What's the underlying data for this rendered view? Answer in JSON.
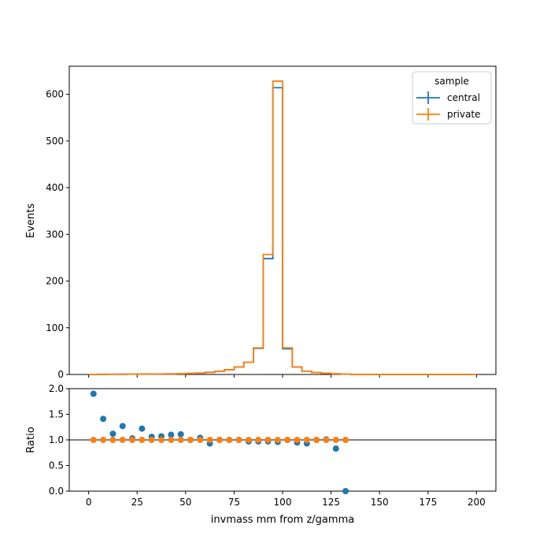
{
  "chart_data": [
    {
      "type": "histogram-step",
      "xlabel": "",
      "ylabel": "Events",
      "xlim": [
        -10,
        210
      ],
      "ylim": [
        0,
        660
      ],
      "xticks": [
        0,
        25,
        50,
        75,
        100,
        125,
        150,
        175,
        200
      ],
      "yticks": [
        0,
        100,
        200,
        300,
        400,
        500,
        600
      ],
      "show_xtick_labels": false,
      "bin_edges": [
        0,
        5,
        10,
        15,
        20,
        25,
        30,
        35,
        40,
        45,
        50,
        55,
        60,
        65,
        70,
        75,
        80,
        85,
        90,
        95,
        100,
        105,
        110,
        115,
        120,
        125,
        130,
        135,
        140,
        145,
        150,
        155,
        160,
        165,
        170,
        175,
        180,
        185,
        190,
        195,
        200
      ],
      "legend": {
        "title": "sample",
        "position": "upper right"
      },
      "series": [
        {
          "name": "central",
          "color": "#1f77b4",
          "values": [
            0.1,
            0.3,
            0.4,
            0.5,
            0.6,
            0.8,
            0.9,
            1.0,
            1.2,
            1.6,
            2.2,
            3.0,
            4.5,
            6.5,
            10,
            16,
            26,
            56,
            248,
            614,
            55,
            16,
            7,
            4,
            2.5,
            1.4,
            0.6,
            0.1,
            0,
            0,
            0,
            0,
            0,
            0,
            0,
            0,
            0,
            0,
            0,
            0
          ]
        },
        {
          "name": "private",
          "color": "#ff7f0e",
          "values": [
            0.1,
            0.3,
            0.4,
            0.5,
            0.6,
            0.8,
            0.9,
            1.0,
            1.2,
            1.6,
            2.2,
            3.0,
            4.5,
            6.5,
            10,
            16,
            26,
            57,
            257,
            628,
            57,
            16,
            7,
            4,
            2.5,
            1.4,
            0.6,
            0.1,
            0,
            0,
            0,
            0,
            0,
            0,
            0,
            0,
            0,
            0,
            0,
            0
          ]
        }
      ]
    },
    {
      "type": "scatter",
      "xlabel": "invmass mm from z/gamma",
      "ylabel": "Ratio",
      "xlim": [
        -10,
        210
      ],
      "ylim": [
        0,
        2
      ],
      "xticks": [
        0,
        25,
        50,
        75,
        100,
        125,
        150,
        175,
        200
      ],
      "yticks": [
        0.0,
        0.5,
        1.0,
        1.5,
        2.0
      ],
      "reference_line": 1.0,
      "series": [
        {
          "name": "central",
          "color": "#1f77b4",
          "x": [
            2.5,
            7.5,
            12.5,
            17.5,
            22.5,
            27.5,
            32.5,
            37.5,
            42.5,
            47.5,
            52.5,
            57.5,
            62.5,
            67.5,
            72.5,
            77.5,
            82.5,
            87.5,
            92.5,
            97.5,
            102.5,
            107.5,
            112.5,
            117.5,
            122.5,
            127.5,
            132.5
          ],
          "y": [
            1.9,
            1.41,
            1.12,
            1.27,
            1.03,
            1.22,
            1.06,
            1.07,
            1.1,
            1.11,
            1.0,
            1.04,
            0.93,
            1.0,
            1.0,
            1.0,
            0.97,
            0.97,
            0.97,
            0.96,
            1.0,
            0.95,
            0.93,
            1.0,
            1.01,
            0.83,
            0.0
          ]
        },
        {
          "name": "private",
          "color": "#ff7f0e",
          "x": [
            2.5,
            7.5,
            12.5,
            17.5,
            22.5,
            27.5,
            32.5,
            37.5,
            42.5,
            47.5,
            52.5,
            57.5,
            62.5,
            67.5,
            72.5,
            77.5,
            82.5,
            87.5,
            92.5,
            97.5,
            102.5,
            107.5,
            112.5,
            117.5,
            122.5,
            127.5,
            132.5
          ],
          "y": [
            1,
            1,
            1,
            1,
            1,
            1,
            1,
            1,
            1,
            1,
            1,
            1,
            1,
            1,
            1,
            1,
            1,
            1,
            1,
            1,
            1,
            1,
            1,
            1,
            1,
            1,
            1
          ]
        }
      ]
    }
  ]
}
